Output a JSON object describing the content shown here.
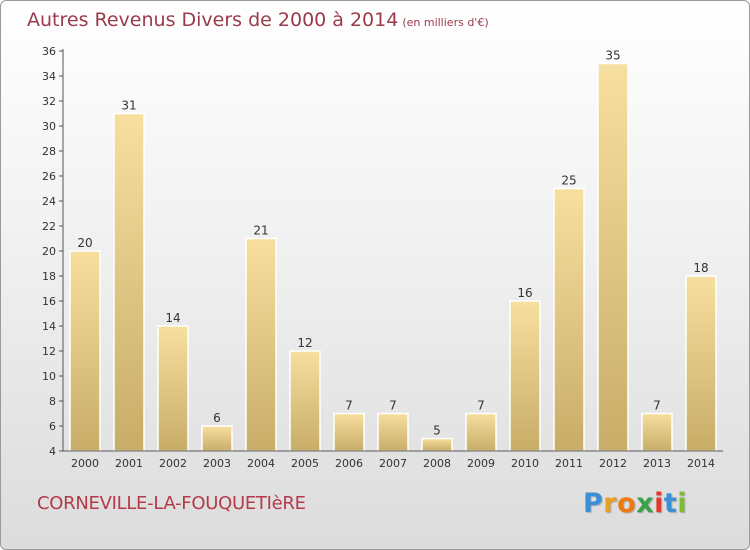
{
  "header": {
    "title": "Autres Revenus Divers de 2000 à 2014",
    "unit": "(en milliers d'€)"
  },
  "footer": {
    "commune": "CORNEVILLE-LA-FOUQUETIèRE",
    "logo_letters": [
      "P",
      "r",
      "o",
      "x",
      "i",
      "t",
      "i"
    ],
    "logo_colors": [
      "#3b8fd6",
      "#e8a020",
      "#ee7a10",
      "#3aa14a",
      "#e23a2a",
      "#3b8fd6",
      "#7cbf2a"
    ]
  },
  "colors": {
    "bar_light": "#f7dfa0",
    "bar_dark": "#c8ad68",
    "axis": "#555555"
  },
  "chart_data": {
    "type": "bar",
    "categories": [
      "2000",
      "2001",
      "2002",
      "2003",
      "2004",
      "2005",
      "2006",
      "2007",
      "2008",
      "2009",
      "2010",
      "2011",
      "2012",
      "2013",
      "2014"
    ],
    "values": [
      20,
      31,
      14,
      6,
      21,
      12,
      7,
      7,
      5,
      7,
      16,
      25,
      35,
      7,
      18
    ],
    "yticks": [
      4,
      6,
      8,
      10,
      12,
      14,
      16,
      18,
      20,
      22,
      24,
      26,
      28,
      30,
      32,
      34,
      36
    ],
    "ylim": [
      4,
      36
    ],
    "title": "Autres Revenus Divers de 2000 à 2014",
    "xlabel": "",
    "ylabel": "",
    "grid": false,
    "legend": "none"
  }
}
